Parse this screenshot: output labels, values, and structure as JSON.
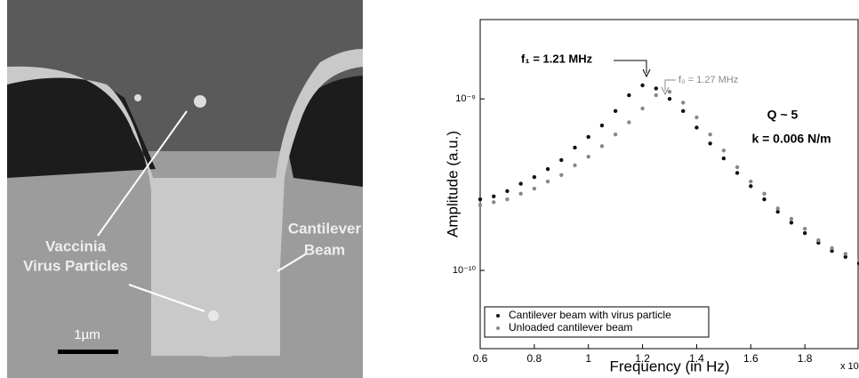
{
  "image": {
    "labels": [
      "Vaccinia",
      "Virus Particles",
      "Cantilever",
      "Beam"
    ],
    "scale_bar": "1µm"
  },
  "chart_data": {
    "type": "scatter",
    "x_label": "Frequency (in Hz)",
    "y_label": "Amplitude (a.u.)",
    "x_offset_label": "x 10",
    "annotations": [
      "f₁ = 1.21 MHz",
      "f₀ = 1.27 MHz",
      "Q ~ 5",
      "k = 0.006 N/m"
    ],
    "log_y": true,
    "legend": "lower left",
    "xlim": [
      0.6,
      2.0
    ],
    "xticks": [
      0.6,
      0.8,
      1,
      1.2,
      1.4,
      1.6,
      1.8
    ],
    "ylim": [
      3.5e-11,
      2.9e-09
    ],
    "yticks": [
      {
        "value": 1e-10,
        "label": "10⁻¹⁰"
      },
      {
        "value": 1e-09,
        "label": "10⁻⁹"
      }
    ],
    "x": [
      0.6,
      0.65,
      0.7,
      0.75,
      0.8,
      0.85,
      0.9,
      0.95,
      1.0,
      1.05,
      1.1,
      1.15,
      1.2,
      1.25,
      1.3,
      1.35,
      1.4,
      1.45,
      1.5,
      1.55,
      1.6,
      1.65,
      1.7,
      1.75,
      1.8,
      1.85,
      1.9,
      1.95,
      2.0
    ],
    "series": [
      {
        "name": "Cantilever beam with virus particle",
        "color": "#111111",
        "values": [
          2.6e-10,
          2.7e-10,
          2.9e-10,
          3.2e-10,
          3.5e-10,
          3.9e-10,
          4.4e-10,
          5.2e-10,
          6e-10,
          7e-10,
          8.5e-10,
          1.05e-09,
          1.2e-09,
          1.15e-09,
          1e-09,
          8.5e-10,
          6.8e-10,
          5.5e-10,
          4.5e-10,
          3.7e-10,
          3.1e-10,
          2.6e-10,
          2.2e-10,
          1.9e-10,
          1.65e-10,
          1.45e-10,
          1.3e-10,
          1.2e-10,
          1.1e-10
        ]
      },
      {
        "name": "Unloaded cantilever beam",
        "color": "#888888",
        "values": [
          2.4e-10,
          2.5e-10,
          2.6e-10,
          2.8e-10,
          3e-10,
          3.3e-10,
          3.6e-10,
          4.1e-10,
          4.6e-10,
          5.3e-10,
          6.2e-10,
          7.3e-10,
          8.8e-10,
          1.05e-09,
          1.1e-09,
          9.5e-10,
          7.8e-10,
          6.2e-10,
          5e-10,
          4e-10,
          3.3e-10,
          2.8e-10,
          2.3e-10,
          2e-10,
          1.75e-10,
          1.5e-10,
          1.35e-10,
          1.25e-10,
          1.15e-10
        ]
      }
    ]
  }
}
